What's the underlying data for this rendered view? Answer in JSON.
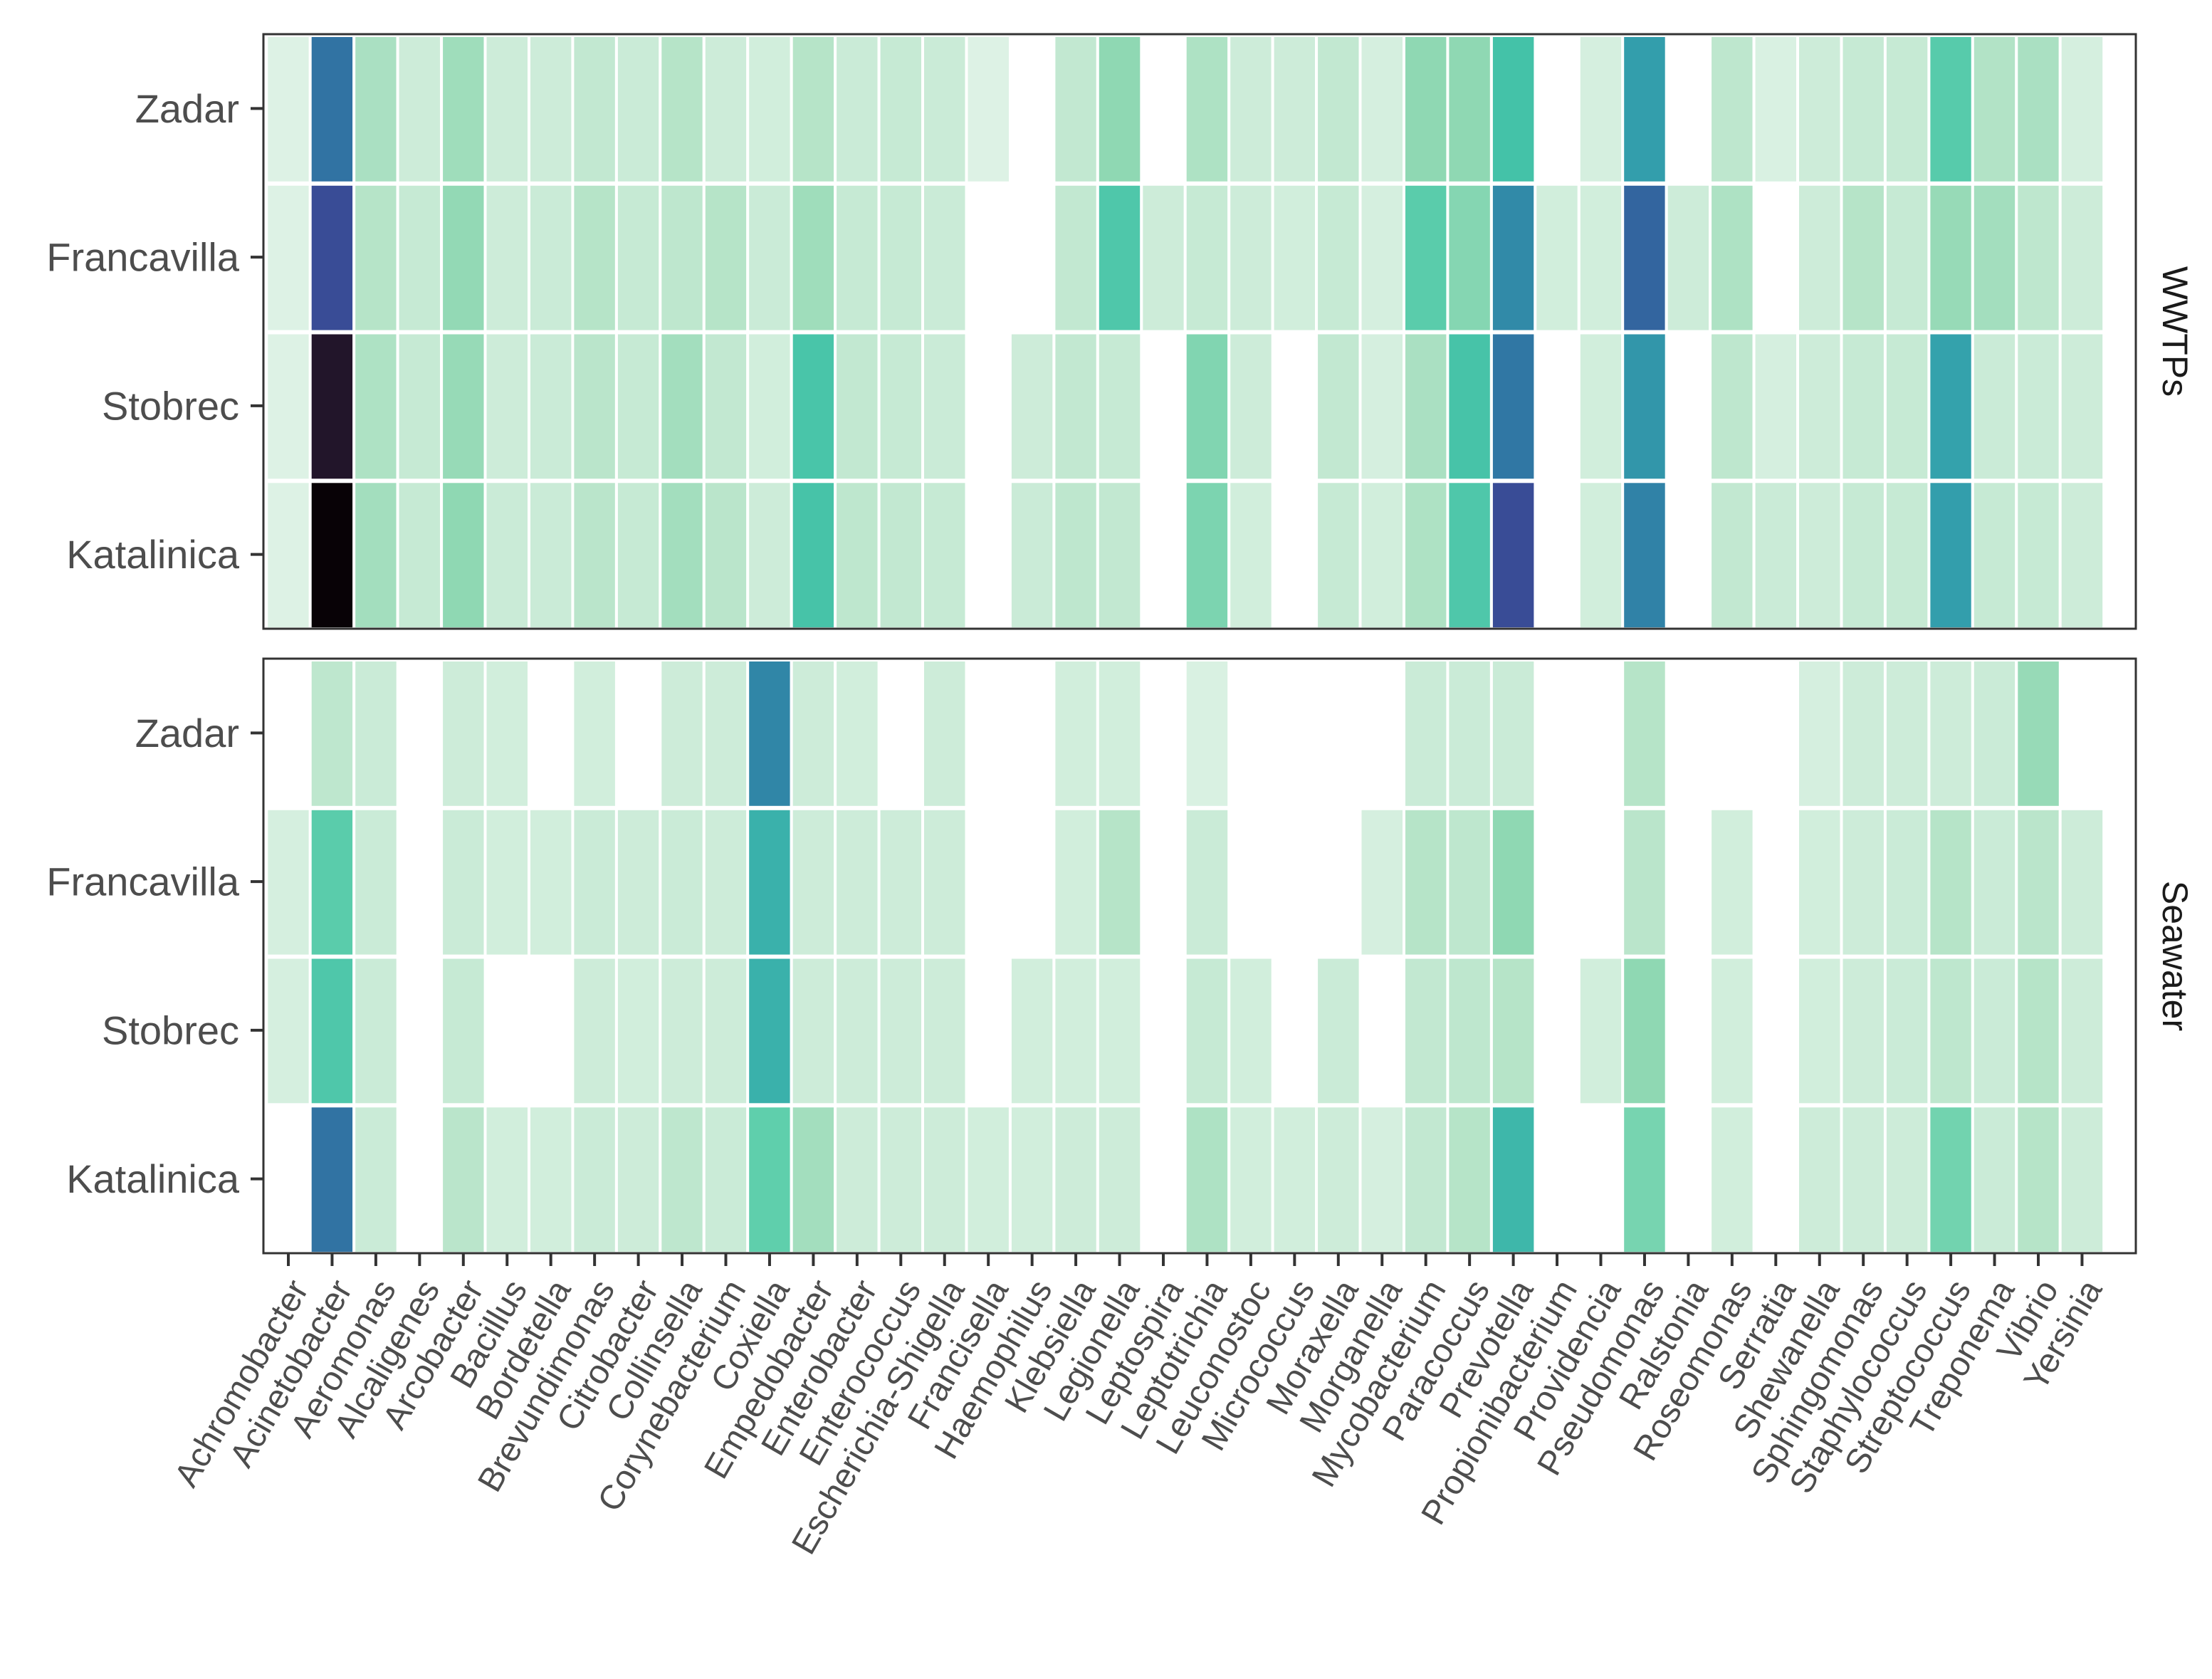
{
  "chart_data": {
    "type": "heatmap",
    "title": "",
    "xlabel": "",
    "ylabel": "",
    "legend": "none",
    "value_range": [
      0,
      10
    ],
    "color_scale": [
      "#ffffff",
      "#ddf2e5",
      "#b6e4c8",
      "#8fd8b3",
      "#5fcfac",
      "#44c2a8",
      "#34a6ad",
      "#2f7ea6",
      "#355a9c",
      "#3a4694",
      "#22152a",
      "#080206"
    ],
    "rows": [
      "Zadar",
      "Francavilla",
      "Stobrec",
      "Katalinica"
    ],
    "columns": [
      "Achromobacter",
      "Acinetobacter",
      "Aeromonas",
      "Alcaligenes",
      "Arcobacter",
      "Bacillus",
      "Bordetella",
      "Brevundimonas",
      "Citrobacter",
      "Collinsella",
      "Corynebacterium",
      "Coxiella",
      "Empedobacter",
      "Enterobacter",
      "Enterococcus",
      "Escherichia-Shigella",
      "Francisella",
      "Haemophilus",
      "Klebsiella",
      "Legionella",
      "Leptospira",
      "Leptotrichia",
      "Leuconostoc",
      "Micrococcus",
      "Moraxella",
      "Morganella",
      "Mycobacterium",
      "Paracoccus",
      "Prevotella",
      "Propionibacterium",
      "Providencia",
      "Pseudomonas",
      "Ralstonia",
      "Roseomonas",
      "Serratia",
      "Shewanella",
      "Sphingomonas",
      "Staphylococcus",
      "Streptococcus",
      "Treponema",
      "Vibrio",
      "Yersinia"
    ],
    "panels": [
      {
        "name": "WWTPs",
        "values": [
          [
            1.0,
            7.3,
            2.3,
            1.4,
            2.6,
            1.4,
            1.4,
            1.7,
            1.5,
            2.0,
            1.4,
            1.3,
            2.0,
            1.5,
            1.6,
            1.5,
            1.0,
            0,
            1.7,
            3.0,
            0,
            2.2,
            1.4,
            1.4,
            1.7,
            1.2,
            3.0,
            3.0,
            5.0,
            0,
            1.2,
            6.2,
            0,
            1.8,
            1.1,
            1.4,
            1.6,
            1.6,
            4.3,
            2.1,
            2.3,
            1.2
          ],
          [
            1.0,
            8.7,
            2.0,
            1.6,
            2.9,
            1.4,
            1.5,
            2.0,
            1.6,
            1.8,
            2.0,
            1.5,
            2.6,
            1.6,
            1.6,
            1.5,
            0,
            0,
            1.7,
            4.6,
            1.4,
            1.6,
            1.4,
            1.3,
            1.6,
            1.2,
            4.2,
            3.2,
            6.7,
            1.3,
            1.3,
            7.7,
            1.4,
            2.2,
            0,
            1.4,
            2.0,
            1.6,
            2.8,
            2.5,
            1.8,
            1.4
          ],
          [
            1.0,
            10.0,
            2.2,
            1.6,
            2.8,
            1.4,
            1.5,
            1.9,
            1.6,
            2.5,
            1.7,
            1.3,
            4.8,
            1.7,
            1.6,
            1.5,
            0,
            1.4,
            1.7,
            1.6,
            0,
            3.3,
            1.4,
            0,
            1.7,
            1.2,
            2.3,
            4.9,
            7.2,
            0,
            1.3,
            6.4,
            0,
            1.8,
            1.2,
            1.4,
            1.6,
            1.6,
            6.1,
            1.5,
            1.5,
            1.4
          ],
          [
            1.0,
            11.0,
            2.5,
            1.6,
            3.0,
            1.5,
            1.5,
            1.9,
            1.6,
            2.5,
            1.9,
            1.4,
            4.9,
            1.8,
            1.7,
            1.6,
            0,
            1.5,
            1.8,
            1.7,
            0,
            3.4,
            1.3,
            0,
            1.6,
            1.3,
            2.2,
            4.6,
            8.7,
            0,
            1.3,
            6.9,
            0,
            1.7,
            1.5,
            1.4,
            1.6,
            1.6,
            6.2,
            1.6,
            1.6,
            1.4
          ]
        ]
      },
      {
        "name": "Seawater",
        "values": [
          [
            0,
            1.8,
            1.5,
            0,
            1.4,
            1.3,
            0,
            1.3,
            0,
            1.4,
            1.4,
            6.8,
            1.4,
            1.3,
            0,
            1.4,
            0,
            0,
            1.3,
            1.3,
            0,
            1.1,
            0,
            0,
            0,
            0,
            1.5,
            1.5,
            1.5,
            0,
            0,
            2.0,
            0,
            0,
            0,
            1.2,
            1.4,
            1.4,
            1.4,
            1.5,
            2.8,
            0
          ],
          [
            1.2,
            4.2,
            1.5,
            0,
            1.5,
            1.3,
            1.3,
            1.5,
            1.4,
            1.5,
            1.4,
            5.6,
            1.4,
            1.4,
            1.4,
            1.4,
            0,
            0,
            1.3,
            2.0,
            0,
            1.5,
            0,
            0,
            0,
            1.2,
            2.0,
            1.8,
            3.0,
            0,
            0,
            1.9,
            0,
            1.3,
            0,
            1.3,
            1.4,
            1.5,
            2.0,
            1.5,
            1.9,
            1.4
          ],
          [
            1.2,
            4.6,
            1.5,
            0,
            1.6,
            0,
            0,
            1.4,
            1.3,
            1.4,
            1.4,
            5.6,
            1.4,
            1.4,
            1.4,
            1.4,
            0,
            1.3,
            1.3,
            1.3,
            0,
            1.6,
            1.3,
            0,
            1.5,
            0,
            1.7,
            1.8,
            2.0,
            0,
            1.3,
            3.0,
            0,
            1.3,
            0,
            1.3,
            1.4,
            1.5,
            1.8,
            1.5,
            2.0,
            1.4
          ],
          [
            0,
            7.3,
            1.5,
            0,
            1.9,
            1.3,
            1.3,
            1.5,
            1.4,
            1.8,
            1.5,
            4.0,
            2.5,
            1.4,
            1.4,
            1.4,
            1.3,
            1.3,
            1.4,
            1.4,
            0,
            2.2,
            1.3,
            1.3,
            1.4,
            1.2,
            1.7,
            2.0,
            5.4,
            0,
            0,
            3.5,
            0,
            1.3,
            0,
            1.4,
            1.4,
            1.4,
            3.6,
            1.5,
            2.0,
            1.4
          ]
        ]
      }
    ]
  }
}
